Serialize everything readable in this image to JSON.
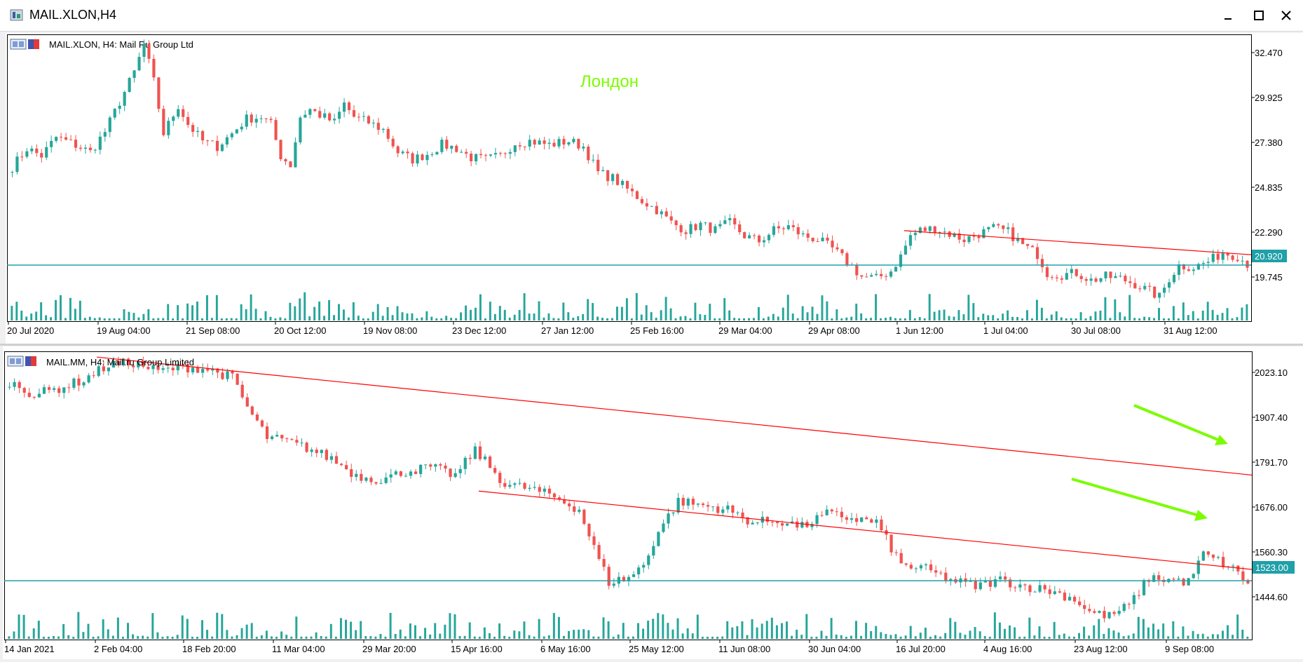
{
  "window": {
    "title": "MAIL.XLON,H4"
  },
  "colors": {
    "up": "#26a69a",
    "down": "#ef5350",
    "trend": "#ff0000",
    "hline": "#20a0a8",
    "arrow": "#7cfc00",
    "label_green": "#7cfc00"
  },
  "chart_data": [
    {
      "type": "candlestick",
      "title": "MAIL.XLON, H4:  Mail Ru Group Ltd",
      "annotation": "Лондон",
      "x_tick_labels": [
        "20 Jul 2020",
        "19 Aug 04:00",
        "21 Sep 08:00",
        "20 Oct 12:00",
        "19 Nov 08:00",
        "23 Dec 12:00",
        "27 Jan 12:00",
        "25 Feb 16:00",
        "29 Mar 04:00",
        "29 Apr 08:00",
        "1 Jun 12:00",
        "1 Jul 04:00",
        "30 Jul 08:00",
        "31 Aug 12:00"
      ],
      "y_tick_labels": [
        "32.470",
        "29.925",
        "27.380",
        "24.835",
        "22.290",
        "19.745"
      ],
      "ylim": [
        17.9,
        33.3
      ],
      "current_price": "20.920",
      "close_path": [
        [
          0,
          26.2
        ],
        [
          3,
          27.2
        ],
        [
          6,
          26.8
        ],
        [
          9,
          27.8
        ],
        [
          12,
          27.5
        ],
        [
          16,
          27.0
        ],
        [
          19,
          28.1
        ],
        [
          22,
          29.7
        ],
        [
          25,
          31.3
        ],
        [
          27,
          32.8
        ],
        [
          29,
          30.8
        ],
        [
          31,
          28.0
        ],
        [
          34,
          29.5
        ],
        [
          36,
          28.5
        ],
        [
          39,
          27.6
        ],
        [
          42,
          27.3
        ],
        [
          45,
          28.0
        ],
        [
          48,
          28.8
        ],
        [
          51,
          28.9
        ],
        [
          53,
          28.5
        ],
        [
          55,
          26.8
        ],
        [
          57,
          26.3
        ],
        [
          59,
          28.9
        ],
        [
          61,
          29.3
        ],
        [
          63,
          29.0
        ],
        [
          66,
          28.6
        ],
        [
          68,
          29.6
        ],
        [
          70,
          28.9
        ],
        [
          73,
          28.6
        ],
        [
          76,
          28.2
        ],
        [
          79,
          27.0
        ],
        [
          82,
          26.6
        ],
        [
          85,
          26.9
        ],
        [
          88,
          27.4
        ],
        [
          91,
          27.2
        ],
        [
          94,
          26.7
        ],
        [
          97,
          26.6
        ],
        [
          100,
          26.8
        ],
        [
          103,
          27.5
        ],
        [
          106,
          27.6
        ],
        [
          110,
          27.4
        ],
        [
          114,
          27.6
        ],
        [
          117,
          27.3
        ],
        [
          120,
          25.9
        ],
        [
          123,
          25.6
        ],
        [
          126,
          25.0
        ],
        [
          129,
          24.4
        ],
        [
          132,
          23.9
        ],
        [
          135,
          23.2
        ],
        [
          138,
          22.8
        ],
        [
          141,
          23.1
        ],
        [
          144,
          22.8
        ],
        [
          147,
          23.2
        ],
        [
          150,
          22.5
        ],
        [
          153,
          22.2
        ],
        [
          156,
          22.8
        ],
        [
          159,
          23.0
        ],
        [
          162,
          22.5
        ],
        [
          165,
          22.3
        ],
        [
          168,
          21.8
        ],
        [
          171,
          21.1
        ],
        [
          174,
          20.3
        ],
        [
          177,
          20.2
        ],
        [
          180,
          20.6
        ],
        [
          182,
          21.4
        ],
        [
          184,
          22.5
        ],
        [
          186,
          22.8
        ],
        [
          189,
          22.9
        ],
        [
          192,
          22.6
        ],
        [
          195,
          22.3
        ],
        [
          198,
          22.6
        ],
        [
          201,
          22.9
        ],
        [
          204,
          22.7
        ],
        [
          207,
          22.0
        ],
        [
          210,
          21.5
        ],
        [
          212,
          20.5
        ],
        [
          215,
          20.4
        ],
        [
          218,
          20.5
        ],
        [
          221,
          20.1
        ],
        [
          224,
          20.3
        ],
        [
          227,
          20.2
        ],
        [
          230,
          19.9
        ],
        [
          233,
          19.5
        ],
        [
          235,
          19.2
        ],
        [
          237,
          20.2
        ],
        [
          239,
          20.9
        ],
        [
          242,
          20.8
        ],
        [
          245,
          21.1
        ],
        [
          248,
          21.6
        ],
        [
          251,
          21.4
        ],
        [
          253,
          21.0
        ]
      ],
      "trendlines": [
        {
          "from": [
            "1 Jun 12:00",
            22.8
          ],
          "to": [
            "31 Aug 12:00",
            21.8
          ]
        },
        {
          "type": "horizontal",
          "value": 20.92
        }
      ]
    },
    {
      "type": "candlestick",
      "title": "MAIL.MM, H4:  Mail.ru Group Limited",
      "x_tick_labels": [
        "14 Jan 2021",
        "2 Feb 04:00",
        "18 Feb 20:00",
        "11 Mar 04:00",
        "29 Mar 20:00",
        "15 Apr 16:00",
        "6 May 16:00",
        "25 May 12:00",
        "11 Jun 08:00",
        "30 Jun 04:00",
        "16 Jul 20:00",
        "4 Aug 16:00",
        "23 Aug 12:00",
        "9 Sep 08:00"
      ],
      "y_tick_labels": [
        "2023.10",
        "1907.40",
        "1791.70",
        "1676.00",
        "1560.30",
        "1444.60"
      ],
      "ylim": [
        1385,
        2060
      ],
      "current_price": "1523.00",
      "close_path": [
        [
          0,
          1990
        ],
        [
          5,
          1960
        ],
        [
          10,
          1975
        ],
        [
          15,
          1995
        ],
        [
          20,
          2030
        ],
        [
          25,
          2035
        ],
        [
          30,
          2015
        ],
        [
          35,
          2025
        ],
        [
          40,
          2020
        ],
        [
          45,
          2000
        ],
        [
          48,
          1930
        ],
        [
          52,
          1860
        ],
        [
          56,
          1850
        ],
        [
          60,
          1835
        ],
        [
          65,
          1810
        ],
        [
          70,
          1770
        ],
        [
          75,
          1760
        ],
        [
          80,
          1780
        ],
        [
          85,
          1790
        ],
        [
          90,
          1770
        ],
        [
          94,
          1830
        ],
        [
          97,
          1790
        ],
        [
          100,
          1750
        ],
        [
          105,
          1740
        ],
        [
          110,
          1720
        ],
        [
          115,
          1690
        ],
        [
          118,
          1600
        ],
        [
          121,
          1520
        ],
        [
          125,
          1530
        ],
        [
          128,
          1560
        ],
        [
          131,
          1640
        ],
        [
          135,
          1710
        ],
        [
          140,
          1700
        ],
        [
          145,
          1690
        ],
        [
          150,
          1660
        ],
        [
          155,
          1665
        ],
        [
          160,
          1650
        ],
        [
          165,
          1680
        ],
        [
          170,
          1670
        ],
        [
          175,
          1660
        ],
        [
          180,
          1560
        ],
        [
          185,
          1550
        ],
        [
          190,
          1525
        ],
        [
          195,
          1510
        ],
        [
          200,
          1525
        ],
        [
          205,
          1510
        ],
        [
          210,
          1500
        ],
        [
          215,
          1480
        ],
        [
          218,
          1450
        ],
        [
          222,
          1440
        ],
        [
          226,
          1465
        ],
        [
          230,
          1530
        ],
        [
          235,
          1525
        ],
        [
          238,
          1520
        ],
        [
          241,
          1585
        ],
        [
          244,
          1570
        ],
        [
          247,
          1550
        ],
        [
          250,
          1520
        ]
      ],
      "trendlines": [
        {
          "from": [
            "14 Jan 2021",
            2070.0
          ],
          "to": [
            "9 Sep 08:00",
            1791.7
          ]
        },
        {
          "from": [
            "15 Apr 16:00",
            1740.0
          ],
          "to": [
            "9 Sep 08:00",
            1570.0
          ]
        },
        {
          "type": "horizontal",
          "value": 1523.0
        }
      ]
    }
  ]
}
